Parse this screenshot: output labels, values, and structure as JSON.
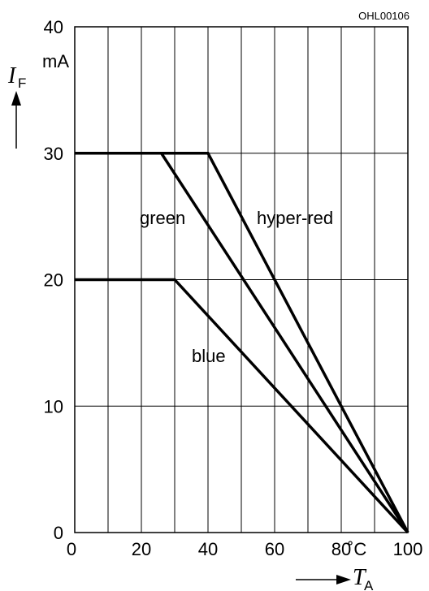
{
  "chart_data": {
    "type": "line",
    "doc_id": "OHL00106",
    "xlim": [
      0,
      100
    ],
    "ylim": [
      0,
      40
    ],
    "x_ticks": [
      "0",
      "20",
      "40",
      "60",
      "80",
      "100"
    ],
    "y_ticks": [
      "0",
      "10",
      "20",
      "30",
      "40"
    ],
    "x_unit": "˚C",
    "y_unit": "mA",
    "ylabel": {
      "symbol": "I",
      "subscript": "F"
    },
    "xlabel": {
      "symbol": "T",
      "subscript": "A"
    },
    "grid": true,
    "series": [
      {
        "name": "hyper-red",
        "points": [
          [
            0,
            30
          ],
          [
            40,
            30
          ],
          [
            100,
            0
          ]
        ]
      },
      {
        "name": "green",
        "points": [
          [
            0,
            30
          ],
          [
            26,
            30
          ],
          [
            100,
            0
          ]
        ]
      },
      {
        "name": "blue",
        "points": [
          [
            0,
            20
          ],
          [
            30,
            20
          ],
          [
            100,
            0
          ]
        ]
      }
    ]
  }
}
